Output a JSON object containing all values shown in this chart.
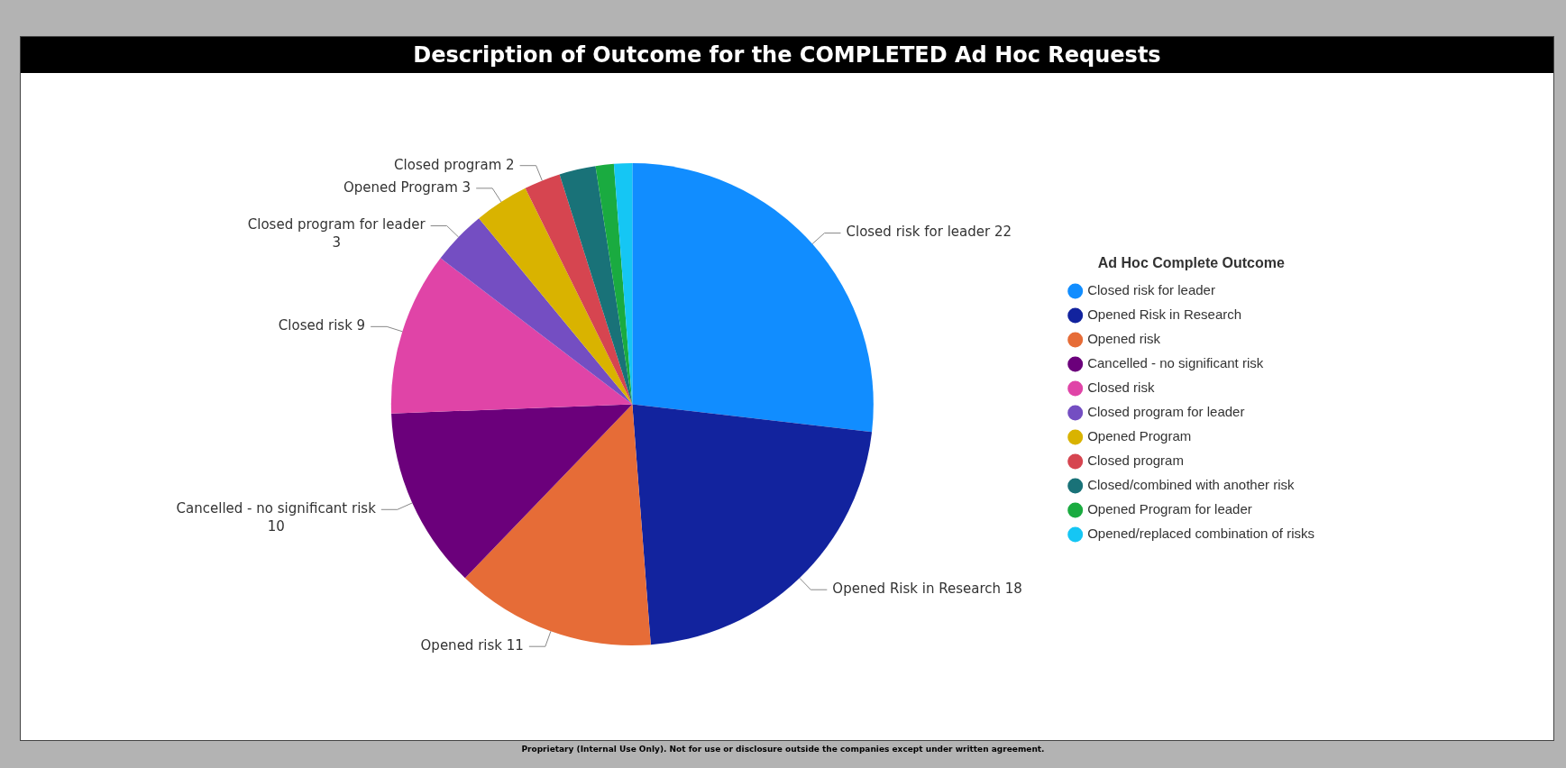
{
  "chart_data": {
    "type": "pie",
    "title": "Description of Outcome for the COMPLETED Ad Hoc Requests",
    "legend_title": "Ad Hoc Complete Outcome",
    "legend": "right",
    "categories": [
      "Closed risk for leader",
      "Opened Risk in Research",
      "Opened risk",
      "Cancelled - no significant risk",
      "Closed risk",
      "Closed program for leader",
      "Opened Program",
      "Closed program",
      "Closed/combined with another risk",
      "Opened Program for leader",
      "Opened/replaced combination of risks"
    ],
    "values": [
      22,
      18,
      11,
      10,
      9,
      3,
      3,
      2,
      2,
      1,
      1
    ],
    "value_labels": [
      "22",
      "18",
      "11",
      "10",
      "9",
      "3",
      "3",
      "2",
      null,
      null,
      null
    ],
    "colors": [
      "#118dff",
      "#12239e",
      "#e66c37",
      "#6b007b",
      "#e044a7",
      "#744ec2",
      "#d9b300",
      "#d64550",
      "#197278",
      "#1aab40",
      "#15c6f4"
    ],
    "annotations": [
      "Proprietary (Internal Use Only). Not for use or disclosure outside the companies except under written agreement."
    ]
  }
}
